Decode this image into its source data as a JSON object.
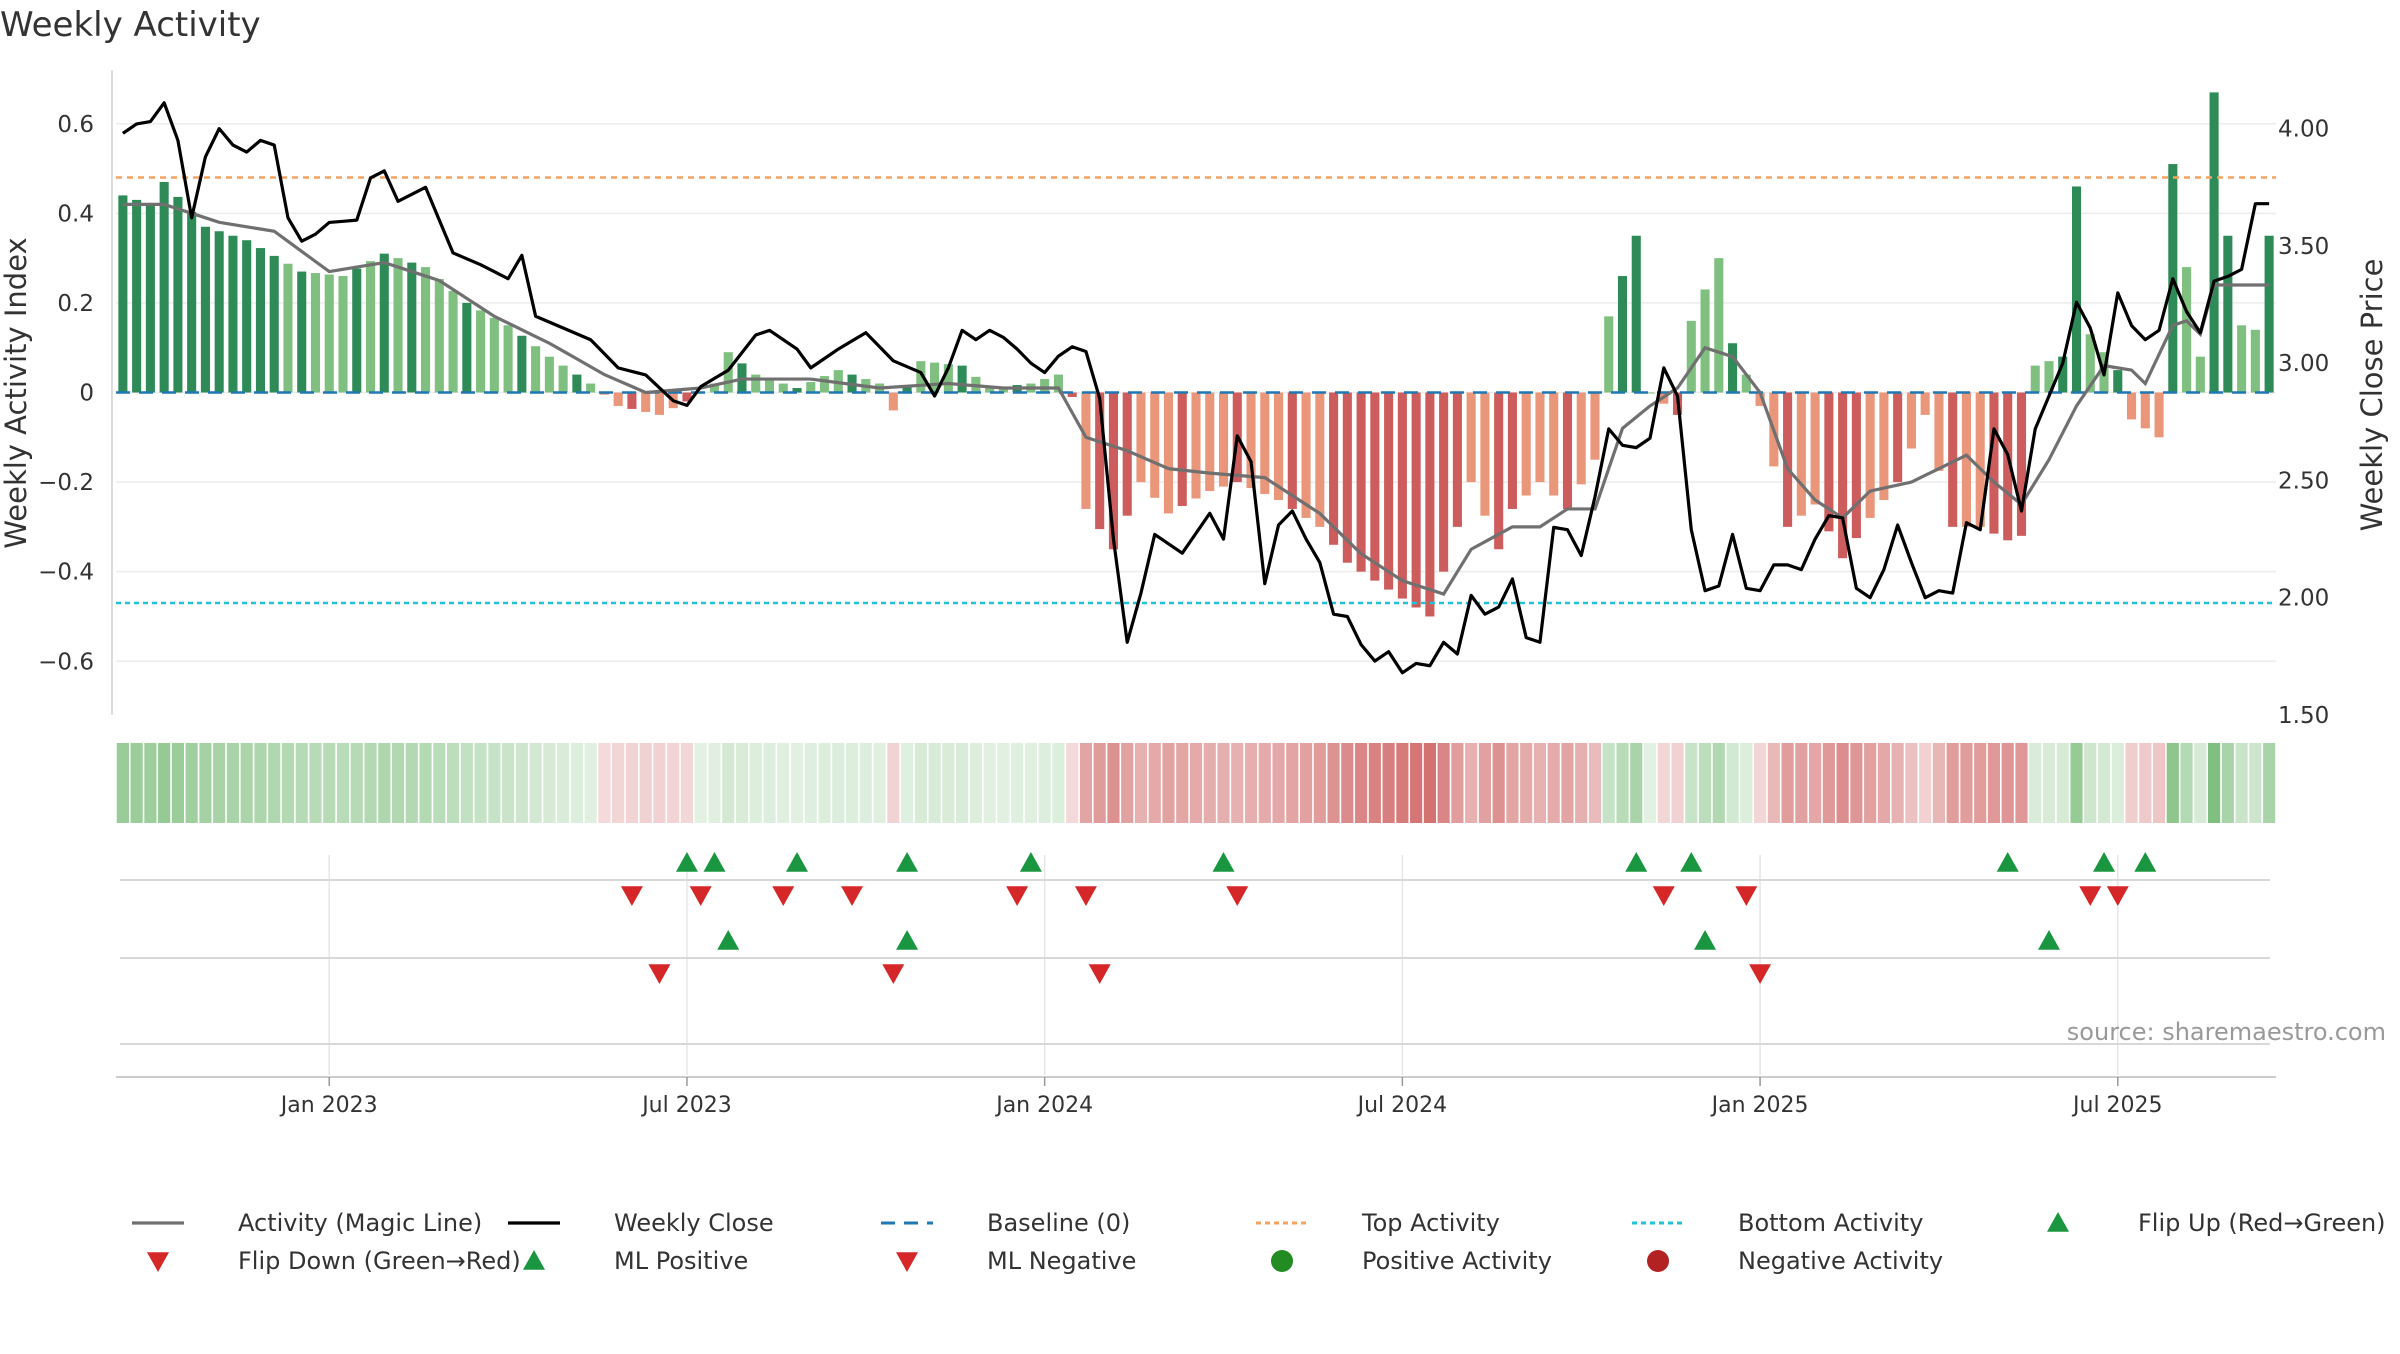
{
  "chart_data": {
    "type": "bar",
    "title": "Weekly Activity",
    "source_note": "source: sharemaestro.com",
    "y_left_label": "Weekly Activity Index",
    "y_right_label": "Weekly Close Price",
    "y_left_lim": [
      -0.72,
      0.72
    ],
    "y_right_lim": [
      1.5,
      4.25
    ],
    "y_left_ticks": [
      {
        "v": 0.6,
        "label": "0.6"
      },
      {
        "v": 0.4,
        "label": "0.4"
      },
      {
        "v": 0.2,
        "label": "0.2"
      },
      {
        "v": 0,
        "label": "0"
      },
      {
        "v": -0.2,
        "label": "−0.2"
      },
      {
        "v": -0.4,
        "label": "−0.4"
      },
      {
        "v": -0.6,
        "label": "−0.6"
      }
    ],
    "y_right_ticks": [
      {
        "v": 4.0,
        "label": "4.00"
      },
      {
        "v": 3.5,
        "label": "3.50"
      },
      {
        "v": 3.0,
        "label": "3.00"
      },
      {
        "v": 2.5,
        "label": "2.50"
      },
      {
        "v": 2.0,
        "label": "2.00"
      },
      {
        "v": 1.5,
        "label": "1.50"
      }
    ],
    "x_ticks": [
      {
        "week": 15,
        "label": "Jan 2023"
      },
      {
        "week": 41,
        "label": "Jul 2023"
      },
      {
        "week": 67,
        "label": "Jan 2024"
      },
      {
        "week": 93,
        "label": "Jul 2024"
      },
      {
        "week": 119,
        "label": "Jan 2025"
      },
      {
        "week": 145,
        "label": "Jul 2025"
      }
    ],
    "week_count": 157,
    "top_activity": 0.48,
    "bottom_activity": -0.47,
    "colors": {
      "pos_strong": "#2e8b57",
      "pos_light": "#7fbf7f",
      "neg_strong": "#cd5c5c",
      "neg_light": "#e9967a",
      "magic": "#707070",
      "close": "#000000",
      "baseline": "#1f77b4",
      "top": "#f4a460",
      "bottom": "#22c4d4",
      "up_marker": "#1a9641",
      "down_marker": "#d62728",
      "pos_dot": "#228b22",
      "neg_dot": "#b22222"
    },
    "activity_anchors": [
      [
        0,
        0.44
      ],
      [
        2,
        0.42
      ],
      [
        3,
        0.47
      ],
      [
        6,
        0.37
      ],
      [
        9,
        0.34
      ],
      [
        13,
        0.27
      ],
      [
        16,
        0.26
      ],
      [
        19,
        0.31
      ],
      [
        22,
        0.28
      ],
      [
        25,
        0.2
      ],
      [
        28,
        0.15
      ],
      [
        31,
        0.08
      ],
      [
        34,
        0.02
      ],
      [
        36,
        -0.03
      ],
      [
        39,
        -0.05
      ],
      [
        41,
        -0.02
      ],
      [
        43,
        0.02
      ],
      [
        44,
        0.09
      ],
      [
        46,
        0.04
      ],
      [
        49,
        0.01
      ],
      [
        52,
        0.05
      ],
      [
        55,
        0.02
      ],
      [
        56,
        -0.04
      ],
      [
        58,
        0.07
      ],
      [
        61,
        0.06
      ],
      [
        63,
        0.01
      ],
      [
        66,
        0.02
      ],
      [
        68,
        0.04
      ],
      [
        69,
        -0.01
      ],
      [
        70,
        -0.26
      ],
      [
        72,
        -0.35
      ],
      [
        74,
        -0.2
      ],
      [
        76,
        -0.27
      ],
      [
        79,
        -0.22
      ],
      [
        81,
        -0.2
      ],
      [
        84,
        -0.24
      ],
      [
        87,
        -0.3
      ],
      [
        89,
        -0.38
      ],
      [
        92,
        -0.44
      ],
      [
        95,
        -0.5
      ],
      [
        96,
        -0.4
      ],
      [
        98,
        -0.2
      ],
      [
        100,
        -0.35
      ],
      [
        101,
        -0.26
      ],
      [
        103,
        -0.2
      ],
      [
        105,
        -0.26
      ],
      [
        107,
        -0.15
      ],
      [
        108,
        0.17
      ],
      [
        110,
        0.35
      ],
      [
        111,
        0.0
      ],
      [
        113,
        -0.05
      ],
      [
        114,
        0.16
      ],
      [
        116,
        0.3
      ],
      [
        117,
        0.11
      ],
      [
        119,
        -0.03
      ],
      [
        121,
        -0.3
      ],
      [
        123,
        -0.25
      ],
      [
        125,
        -0.37
      ],
      [
        127,
        -0.28
      ],
      [
        129,
        -0.2
      ],
      [
        131,
        -0.05
      ],
      [
        133,
        -0.3
      ],
      [
        135,
        -0.3
      ],
      [
        137,
        -0.33
      ],
      [
        138,
        -0.32
      ],
      [
        139,
        0.06
      ],
      [
        141,
        0.08
      ],
      [
        142,
        0.46
      ],
      [
        143,
        0.13
      ],
      [
        145,
        0.05
      ],
      [
        146,
        -0.06
      ],
      [
        148,
        -0.1
      ],
      [
        149,
        0.51
      ],
      [
        150,
        0.28
      ],
      [
        151,
        0.08
      ],
      [
        152,
        0.67
      ],
      [
        153,
        0.35
      ],
      [
        154,
        0.15
      ],
      [
        155,
        0.14
      ],
      [
        156,
        0.35
      ]
    ],
    "magic_anchors": [
      [
        0,
        0.42
      ],
      [
        3,
        0.42
      ],
      [
        7,
        0.38
      ],
      [
        11,
        0.36
      ],
      [
        15,
        0.27
      ],
      [
        19,
        0.29
      ],
      [
        23,
        0.25
      ],
      [
        27,
        0.17
      ],
      [
        31,
        0.11
      ],
      [
        35,
        0.04
      ],
      [
        38,
        0.0
      ],
      [
        42,
        0.01
      ],
      [
        45,
        0.03
      ],
      [
        50,
        0.03
      ],
      [
        55,
        0.01
      ],
      [
        60,
        0.02
      ],
      [
        64,
        0.01
      ],
      [
        68,
        0.01
      ],
      [
        70,
        -0.1
      ],
      [
        73,
        -0.13
      ],
      [
        76,
        -0.17
      ],
      [
        79,
        -0.18
      ],
      [
        83,
        -0.19
      ],
      [
        87,
        -0.27
      ],
      [
        90,
        -0.36
      ],
      [
        93,
        -0.42
      ],
      [
        96,
        -0.45
      ],
      [
        98,
        -0.35
      ],
      [
        101,
        -0.3
      ],
      [
        103,
        -0.3
      ],
      [
        105,
        -0.26
      ],
      [
        107,
        -0.26
      ],
      [
        109,
        -0.08
      ],
      [
        111,
        -0.03
      ],
      [
        113,
        0.01
      ],
      [
        115,
        0.1
      ],
      [
        117,
        0.08
      ],
      [
        119,
        0.0
      ],
      [
        121,
        -0.17
      ],
      [
        123,
        -0.24
      ],
      [
        125,
        -0.28
      ],
      [
        127,
        -0.22
      ],
      [
        130,
        -0.2
      ],
      [
        132,
        -0.17
      ],
      [
        134,
        -0.14
      ],
      [
        136,
        -0.2
      ],
      [
        138,
        -0.25
      ],
      [
        140,
        -0.15
      ],
      [
        142,
        -0.03
      ],
      [
        144,
        0.06
      ],
      [
        146,
        0.05
      ],
      [
        147,
        0.02
      ],
      [
        149,
        0.15
      ],
      [
        150,
        0.16
      ],
      [
        151,
        0.13
      ],
      [
        152,
        0.24
      ],
      [
        154,
        0.24
      ],
      [
        156,
        0.24
      ]
    ],
    "close_anchors": [
      [
        0,
        3.98
      ],
      [
        1,
        4.02
      ],
      [
        2,
        4.03
      ],
      [
        3,
        4.11
      ],
      [
        4,
        3.95
      ],
      [
        5,
        3.62
      ],
      [
        6,
        3.88
      ],
      [
        7,
        4.0
      ],
      [
        8,
        3.93
      ],
      [
        9,
        3.9
      ],
      [
        10,
        3.95
      ],
      [
        11,
        3.93
      ],
      [
        12,
        3.62
      ],
      [
        13,
        3.52
      ],
      [
        14,
        3.55
      ],
      [
        15,
        3.6
      ],
      [
        17,
        3.61
      ],
      [
        18,
        3.79
      ],
      [
        19,
        3.82
      ],
      [
        20,
        3.69
      ],
      [
        22,
        3.75
      ],
      [
        24,
        3.47
      ],
      [
        26,
        3.42
      ],
      [
        28,
        3.36
      ],
      [
        29,
        3.46
      ],
      [
        30,
        3.2
      ],
      [
        32,
        3.15
      ],
      [
        34,
        3.1
      ],
      [
        36,
        2.98
      ],
      [
        38,
        2.95
      ],
      [
        40,
        2.84
      ],
      [
        41,
        2.82
      ],
      [
        42,
        2.9
      ],
      [
        44,
        2.97
      ],
      [
        46,
        3.12
      ],
      [
        47,
        3.14
      ],
      [
        49,
        3.06
      ],
      [
        50,
        2.98
      ],
      [
        52,
        3.06
      ],
      [
        54,
        3.13
      ],
      [
        56,
        3.01
      ],
      [
        58,
        2.96
      ],
      [
        59,
        2.86
      ],
      [
        60,
        2.98
      ],
      [
        61,
        3.14
      ],
      [
        62,
        3.1
      ],
      [
        63,
        3.14
      ],
      [
        64,
        3.11
      ],
      [
        65,
        3.06
      ],
      [
        66,
        3.0
      ],
      [
        67,
        2.96
      ],
      [
        68,
        3.03
      ],
      [
        69,
        3.07
      ],
      [
        70,
        3.05
      ],
      [
        71,
        2.85
      ],
      [
        72,
        2.25
      ],
      [
        73,
        1.81
      ],
      [
        74,
        2.02
      ],
      [
        75,
        2.27
      ],
      [
        77,
        2.19
      ],
      [
        79,
        2.36
      ],
      [
        80,
        2.25
      ],
      [
        81,
        2.69
      ],
      [
        82,
        2.58
      ],
      [
        83,
        2.06
      ],
      [
        84,
        2.31
      ],
      [
        85,
        2.37
      ],
      [
        86,
        2.25
      ],
      [
        87,
        2.15
      ],
      [
        88,
        1.93
      ],
      [
        89,
        1.92
      ],
      [
        90,
        1.8
      ],
      [
        91,
        1.73
      ],
      [
        92,
        1.77
      ],
      [
        93,
        1.68
      ],
      [
        94,
        1.72
      ],
      [
        95,
        1.71
      ],
      [
        96,
        1.81
      ],
      [
        97,
        1.76
      ],
      [
        98,
        2.01
      ],
      [
        99,
        1.93
      ],
      [
        100,
        1.96
      ],
      [
        101,
        2.08
      ],
      [
        102,
        1.83
      ],
      [
        103,
        1.81
      ],
      [
        104,
        2.3
      ],
      [
        105,
        2.29
      ],
      [
        106,
        2.18
      ],
      [
        107,
        2.43
      ],
      [
        108,
        2.72
      ],
      [
        109,
        2.65
      ],
      [
        110,
        2.64
      ],
      [
        111,
        2.68
      ],
      [
        112,
        2.98
      ],
      [
        113,
        2.86
      ],
      [
        114,
        2.29
      ],
      [
        115,
        2.03
      ],
      [
        116,
        2.05
      ],
      [
        117,
        2.27
      ],
      [
        118,
        2.04
      ],
      [
        119,
        2.03
      ],
      [
        120,
        2.14
      ],
      [
        121,
        2.14
      ],
      [
        122,
        2.12
      ],
      [
        123,
        2.25
      ],
      [
        124,
        2.35
      ],
      [
        125,
        2.34
      ],
      [
        126,
        2.04
      ],
      [
        127,
        2.0
      ],
      [
        128,
        2.12
      ],
      [
        129,
        2.31
      ],
      [
        130,
        2.15
      ],
      [
        131,
        2.0
      ],
      [
        132,
        2.03
      ],
      [
        133,
        2.02
      ],
      [
        134,
        2.32
      ],
      [
        135,
        2.29
      ],
      [
        136,
        2.72
      ],
      [
        137,
        2.61
      ],
      [
        138,
        2.37
      ],
      [
        139,
        2.72
      ],
      [
        140,
        2.86
      ],
      [
        141,
        3.0
      ],
      [
        142,
        3.26
      ],
      [
        143,
        3.15
      ],
      [
        144,
        2.95
      ],
      [
        145,
        3.3
      ],
      [
        146,
        3.16
      ],
      [
        147,
        3.1
      ],
      [
        148,
        3.14
      ],
      [
        149,
        3.36
      ],
      [
        150,
        3.22
      ],
      [
        151,
        3.13
      ],
      [
        152,
        3.35
      ],
      [
        153,
        3.37
      ],
      [
        154,
        3.4
      ],
      [
        155,
        3.68
      ]
    ],
    "flip_up_weeks": [
      41,
      43,
      49,
      57,
      66,
      80,
      110,
      114,
      137,
      144,
      147
    ],
    "flip_down_weeks": [
      37,
      42,
      48,
      53,
      65,
      70,
      81,
      112,
      118,
      143,
      145
    ],
    "ml_positive_weeks": [
      44,
      57,
      115,
      140
    ],
    "ml_negative_weeks": [
      39,
      56,
      71,
      119
    ],
    "legend": [
      {
        "key": "magic",
        "label": "Activity (Magic Line)"
      },
      {
        "key": "close",
        "label": "Weekly Close"
      },
      {
        "key": "baseline",
        "label": "Baseline (0)"
      },
      {
        "key": "top",
        "label": "Top Activity"
      },
      {
        "key": "bottom",
        "label": "Bottom Activity"
      },
      {
        "key": "flip_up",
        "label": "Flip Up (Red→Green)"
      },
      {
        "key": "flip_down",
        "label": "Flip Down (Green→Red)"
      },
      {
        "key": "ml_pos",
        "label": "ML Positive"
      },
      {
        "key": "ml_neg",
        "label": "ML Negative"
      },
      {
        "key": "pos_dot",
        "label": "Positive Activity"
      },
      {
        "key": "neg_dot",
        "label": "Negative Activity"
      }
    ]
  }
}
